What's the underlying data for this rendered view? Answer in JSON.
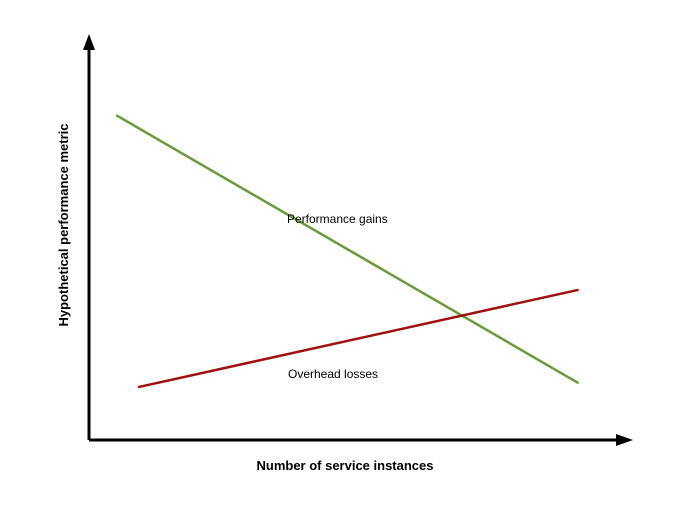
{
  "chart_data": {
    "type": "line",
    "title": "",
    "xlabel": "Number of service instances",
    "ylabel": "Hypothetical performance metric",
    "xlim": [
      0,
      100
    ],
    "ylim": [
      0,
      100
    ],
    "grid": false,
    "legend": "none",
    "series": [
      {
        "name": "Performance gains",
        "color": "#6a9a3c",
        "x": [
          5,
          90
        ],
        "y": [
          80,
          14
        ]
      },
      {
        "name": "Overhead losses",
        "color": "#a01010",
        "x": [
          9,
          90
        ],
        "y": [
          13,
          37
        ]
      }
    ]
  }
}
